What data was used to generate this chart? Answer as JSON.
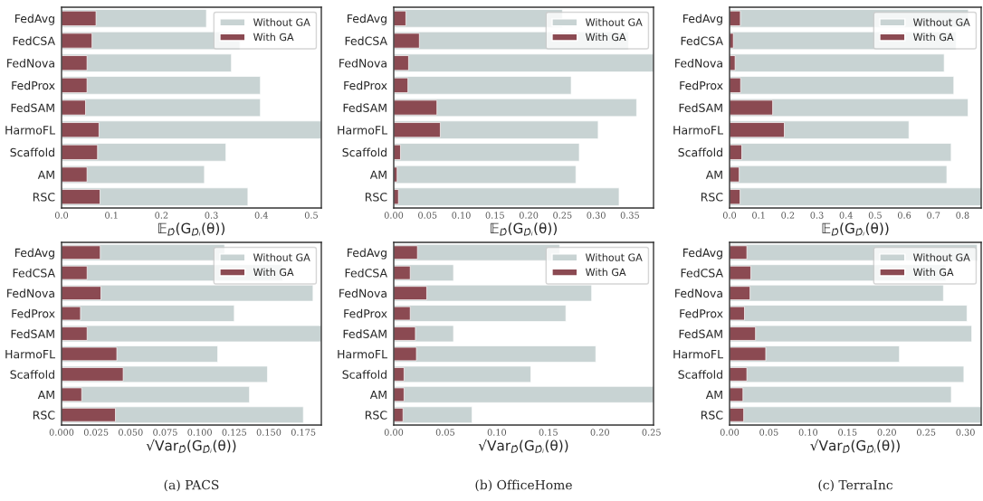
{
  "chart_data": [
    {
      "type": "bar",
      "orientation": "horizontal",
      "categories": [
        "FedAvg",
        "FedCSA",
        "FedNova",
        "FedProx",
        "FedSAM",
        "HarmoFL",
        "Scaffold",
        "AM",
        "RSC"
      ],
      "xlabel": "𝔼$_{D̂}$(G$_{D̂ᵢ}$(θ))",
      "xlim": [
        0,
        0.52
      ],
      "xticks": [
        {
          "value": 0,
          "label": "0.0"
        },
        0.1,
        0.2,
        0.3,
        0.4,
        0.5
      ],
      "legend": "top right",
      "series": [
        {
          "name": "Without GA",
          "color": "#c8d3d3",
          "values": [
            0.29,
            0.357,
            0.34,
            0.398,
            0.398,
            0.52,
            0.329,
            0.286,
            0.373
          ]
        },
        {
          "name": "With GA",
          "color": "#8b4a52",
          "values": [
            0.069,
            0.061,
            0.051,
            0.051,
            0.048,
            0.075,
            0.072,
            0.051,
            0.077
          ]
        }
      ]
    },
    {
      "type": "bar",
      "orientation": "horizontal",
      "categories": [
        "FedAvg",
        "FedCSA",
        "FedNova",
        "FedProx",
        "FedSAM",
        "HarmoFL",
        "Scaffold",
        "AM",
        "RSC"
      ],
      "xlabel": "𝔼$_{D̂}$(G$_{D̂ᵢ}$(θ))",
      "xlim": [
        0,
        0.385
      ],
      "xticks": [
        {
          "value": 0,
          "label": "0.00"
        },
        0.05,
        {
          "value": 0.1,
          "label": "0.10"
        },
        0.15,
        {
          "value": 0.2,
          "label": "0.20"
        },
        0.25,
        {
          "value": 0.3,
          "label": "0.30"
        },
        0.35
      ],
      "legend": "top right",
      "series": [
        {
          "name": "Without GA",
          "color": "#c8d3d3",
          "values": [
            0.25,
            0.348,
            0.385,
            0.263,
            0.36,
            0.303,
            0.275,
            0.27,
            0.334
          ]
        },
        {
          "name": "With GA",
          "color": "#8b4a52",
          "values": [
            0.018,
            0.038,
            0.022,
            0.021,
            0.064,
            0.069,
            0.01,
            0.005,
            0.007
          ]
        }
      ]
    },
    {
      "type": "bar",
      "orientation": "horizontal",
      "categories": [
        "FedAvg",
        "FedCSA",
        "FedNova",
        "FedProx",
        "FedSAM",
        "HarmoFL",
        "Scaffold",
        "AM",
        "RSC"
      ],
      "xlabel": "𝔼$_{D̂}$(G$_{D̂ᵢ}$(θ))",
      "xlim": [
        0,
        0.864
      ],
      "xticks": [
        {
          "value": 0,
          "label": "0.0"
        },
        0.1,
        0.2,
        0.3,
        0.4,
        0.5,
        0.6,
        0.7,
        0.8
      ],
      "legend": "top right",
      "series": [
        {
          "name": "Without GA",
          "color": "#c8d3d3",
          "values": [
            0.82,
            0.778,
            0.737,
            0.77,
            0.819,
            0.616,
            0.761,
            0.746,
            0.864
          ]
        },
        {
          "name": "With GA",
          "color": "#8b4a52",
          "values": [
            0.037,
            0.013,
            0.019,
            0.038,
            0.148,
            0.188,
            0.042,
            0.033,
            0.036
          ]
        }
      ]
    },
    {
      "type": "bar",
      "orientation": "horizontal",
      "categories": [
        "FedAvg",
        "FedCSA",
        "FedNova",
        "FedProx",
        "FedSAM",
        "HarmoFL",
        "Scaffold",
        "AM",
        "RSC"
      ],
      "xlabel": "√Var$_{D̂}$(G$_{D̂ᵢ}$(θ))",
      "xlim": [
        0,
        0.188
      ],
      "xticks": [
        {
          "value": 0,
          "label": "0.000"
        },
        0.025,
        {
          "value": 0.05,
          "label": "0.050"
        },
        0.075,
        {
          "value": 0.1,
          "label": "0.100"
        },
        0.125,
        {
          "value": 0.15,
          "label": "0.150"
        },
        0.175
      ],
      "legend": "top right",
      "annotations": [
        "(a) PACS"
      ],
      "series": [
        {
          "name": "Without GA",
          "color": "#c8d3d3",
          "values": [
            0.118,
            0.16,
            0.182,
            0.125,
            0.188,
            0.113,
            0.149,
            0.136,
            0.175
          ]
        },
        {
          "name": "With GA",
          "color": "#8b4a52",
          "values": [
            0.028,
            0.0185,
            0.0285,
            0.0137,
            0.0185,
            0.04,
            0.0446,
            0.0146,
            0.039
          ]
        }
      ]
    },
    {
      "type": "bar",
      "orientation": "horizontal",
      "categories": [
        "FedAvg",
        "FedCSA",
        "FedNova",
        "FedProx",
        "FedSAM",
        "HarmoFL",
        "Scaffold",
        "AM",
        "RSC"
      ],
      "xlabel": "√Var$_{D̂}$(G$_{D̂ᵢ}$(θ))",
      "xlim": [
        0,
        0.252
      ],
      "xticks": [
        {
          "value": 0,
          "label": "0.00"
        },
        0.05,
        {
          "value": 0.1,
          "label": "0.10"
        },
        0.15,
        {
          "value": 0.2,
          "label": "0.20"
        },
        0.25
      ],
      "legend": "top right",
      "annotations": [
        "(b) OfficeHome"
      ],
      "series": [
        {
          "name": "Without GA",
          "color": "#c8d3d3",
          "values": [
            0.161,
            0.058,
            0.192,
            0.167,
            0.058,
            0.196,
            0.133,
            0.252,
            0.076
          ]
        },
        {
          "name": "With GA",
          "color": "#8b4a52",
          "values": [
            0.023,
            0.016,
            0.032,
            0.016,
            0.021,
            0.022,
            0.01,
            0.01,
            0.009
          ]
        }
      ]
    },
    {
      "type": "bar",
      "orientation": "horizontal",
      "categories": [
        "FedAvg",
        "FedCSA",
        "FedNova",
        "FedProx",
        "FedSAM",
        "HarmoFL",
        "Scaffold",
        "AM",
        "RSC"
      ],
      "xlabel": "√Var$_{D̂}$(G$_{D̂ᵢ}$(θ))",
      "xlim": [
        0,
        0.32
      ],
      "xticks": [
        {
          "value": 0,
          "label": "0.00"
        },
        0.05,
        {
          "value": 0.1,
          "label": "0.10"
        },
        0.15,
        {
          "value": 0.2,
          "label": "0.20"
        },
        0.25,
        {
          "value": 0.3,
          "label": "0.30"
        }
      ],
      "legend": "top right",
      "annotations": [
        "(c) TerraInc"
      ],
      "series": [
        {
          "name": "Without GA",
          "color": "#c8d3d3",
          "values": [
            0.315,
            0.275,
            0.272,
            0.302,
            0.308,
            0.216,
            0.298,
            0.282,
            0.32
          ]
        },
        {
          "name": "With GA",
          "color": "#8b4a52",
          "values": [
            0.022,
            0.027,
            0.026,
            0.019,
            0.033,
            0.046,
            0.022,
            0.017,
            0.018
          ]
        }
      ]
    }
  ]
}
